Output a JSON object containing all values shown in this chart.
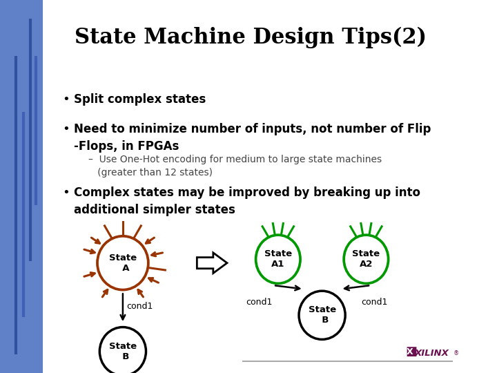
{
  "title": "State Machine Design Tips(2)",
  "title_fontsize": 22,
  "bg_color": "#FFFFFF",
  "bullet1": "Split complex states",
  "bullet2": "Need to minimize number of inputs, not number of Flip\n-Flops, in FPGAs",
  "sub_bullet": "–  Use One-Hot encoding for medium to large state machines\n   (greater than 12 states)",
  "bullet3": "Complex states may be improved by breaking up into\nadditional simpler states",
  "bullet_fontsize": 12,
  "sub_fontsize": 10,
  "red_color": "#993300",
  "green_color": "#009900",
  "black_color": "#111111",
  "xilinx_color": "#6B1050"
}
